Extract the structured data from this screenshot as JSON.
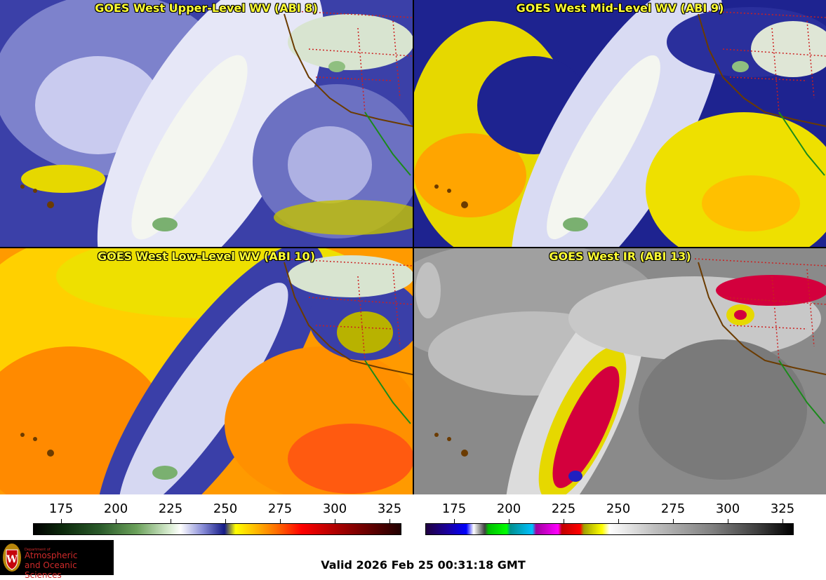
{
  "panels": [
    {
      "title": "GOES West Upper-Level WV (ABI 8)",
      "product": "upper-level-wv"
    },
    {
      "title": "GOES West Mid-Level WV (ABI 9)",
      "product": "mid-level-wv"
    },
    {
      "title": "GOES West Low-Level WV (ABI 10)",
      "product": "low-level-wv"
    },
    {
      "title": "GOES West IR (ABI 13)",
      "product": "ir"
    }
  ],
  "colorbars": {
    "wv": {
      "ticks": [
        "175",
        "200",
        "225",
        "250",
        "275",
        "300",
        "325"
      ]
    },
    "ir": {
      "ticks": [
        "175",
        "200",
        "225",
        "250",
        "275",
        "300",
        "325"
      ]
    }
  },
  "logo": {
    "dept": "Department of",
    "line1": "Atmospheric",
    "line2": "and Oceanic Sciences"
  },
  "valid_time": "Valid 2026 Feb 25 00:31:18 GMT",
  "colors": {
    "title_yellow": "#ffff33",
    "wv_dry": "#ffeb00",
    "wv_moist": "#1a1f8c",
    "ir_cold": "#d3003d",
    "logo_red": "#cf2a2a"
  }
}
